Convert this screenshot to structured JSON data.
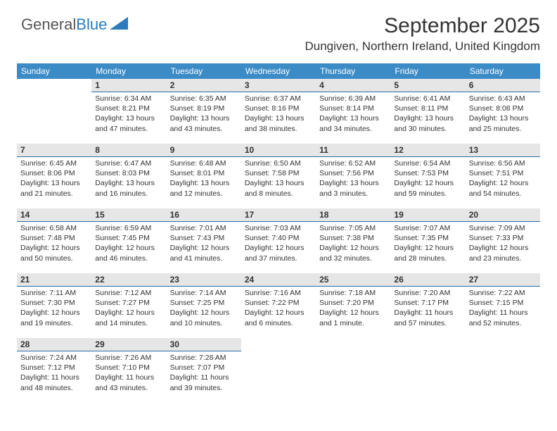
{
  "logo": {
    "text1": "General",
    "text2": "Blue"
  },
  "header": {
    "title": "September 2025",
    "location": "Dungiven, Northern Ireland, United Kingdom"
  },
  "colors": {
    "header_bg": "#3b8bc6",
    "header_fg": "#ffffff",
    "daybar_bg": "#e6e6e6",
    "daybar_border": "#2a6ea8",
    "text": "#333333",
    "logo_blue": "#2b7bbd"
  },
  "weekdays": [
    "Sunday",
    "Monday",
    "Tuesday",
    "Wednesday",
    "Thursday",
    "Friday",
    "Saturday"
  ],
  "weeks": [
    [
      null,
      {
        "n": "1",
        "sr": "6:34 AM",
        "ss": "8:21 PM",
        "dl": "13 hours and 47 minutes."
      },
      {
        "n": "2",
        "sr": "6:35 AM",
        "ss": "8:19 PM",
        "dl": "13 hours and 43 minutes."
      },
      {
        "n": "3",
        "sr": "6:37 AM",
        "ss": "8:16 PM",
        "dl": "13 hours and 38 minutes."
      },
      {
        "n": "4",
        "sr": "6:39 AM",
        "ss": "8:14 PM",
        "dl": "13 hours and 34 minutes."
      },
      {
        "n": "5",
        "sr": "6:41 AM",
        "ss": "8:11 PM",
        "dl": "13 hours and 30 minutes."
      },
      {
        "n": "6",
        "sr": "6:43 AM",
        "ss": "8:08 PM",
        "dl": "13 hours and 25 minutes."
      }
    ],
    [
      {
        "n": "7",
        "sr": "6:45 AM",
        "ss": "8:06 PM",
        "dl": "13 hours and 21 minutes."
      },
      {
        "n": "8",
        "sr": "6:47 AM",
        "ss": "8:03 PM",
        "dl": "13 hours and 16 minutes."
      },
      {
        "n": "9",
        "sr": "6:48 AM",
        "ss": "8:01 PM",
        "dl": "13 hours and 12 minutes."
      },
      {
        "n": "10",
        "sr": "6:50 AM",
        "ss": "7:58 PM",
        "dl": "13 hours and 8 minutes."
      },
      {
        "n": "11",
        "sr": "6:52 AM",
        "ss": "7:56 PM",
        "dl": "13 hours and 3 minutes."
      },
      {
        "n": "12",
        "sr": "6:54 AM",
        "ss": "7:53 PM",
        "dl": "12 hours and 59 minutes."
      },
      {
        "n": "13",
        "sr": "6:56 AM",
        "ss": "7:51 PM",
        "dl": "12 hours and 54 minutes."
      }
    ],
    [
      {
        "n": "14",
        "sr": "6:58 AM",
        "ss": "7:48 PM",
        "dl": "12 hours and 50 minutes."
      },
      {
        "n": "15",
        "sr": "6:59 AM",
        "ss": "7:45 PM",
        "dl": "12 hours and 46 minutes."
      },
      {
        "n": "16",
        "sr": "7:01 AM",
        "ss": "7:43 PM",
        "dl": "12 hours and 41 minutes."
      },
      {
        "n": "17",
        "sr": "7:03 AM",
        "ss": "7:40 PM",
        "dl": "12 hours and 37 minutes."
      },
      {
        "n": "18",
        "sr": "7:05 AM",
        "ss": "7:38 PM",
        "dl": "12 hours and 32 minutes."
      },
      {
        "n": "19",
        "sr": "7:07 AM",
        "ss": "7:35 PM",
        "dl": "12 hours and 28 minutes."
      },
      {
        "n": "20",
        "sr": "7:09 AM",
        "ss": "7:33 PM",
        "dl": "12 hours and 23 minutes."
      }
    ],
    [
      {
        "n": "21",
        "sr": "7:11 AM",
        "ss": "7:30 PM",
        "dl": "12 hours and 19 minutes."
      },
      {
        "n": "22",
        "sr": "7:12 AM",
        "ss": "7:27 PM",
        "dl": "12 hours and 14 minutes."
      },
      {
        "n": "23",
        "sr": "7:14 AM",
        "ss": "7:25 PM",
        "dl": "12 hours and 10 minutes."
      },
      {
        "n": "24",
        "sr": "7:16 AM",
        "ss": "7:22 PM",
        "dl": "12 hours and 6 minutes."
      },
      {
        "n": "25",
        "sr": "7:18 AM",
        "ss": "7:20 PM",
        "dl": "12 hours and 1 minute."
      },
      {
        "n": "26",
        "sr": "7:20 AM",
        "ss": "7:17 PM",
        "dl": "11 hours and 57 minutes."
      },
      {
        "n": "27",
        "sr": "7:22 AM",
        "ss": "7:15 PM",
        "dl": "11 hours and 52 minutes."
      }
    ],
    [
      {
        "n": "28",
        "sr": "7:24 AM",
        "ss": "7:12 PM",
        "dl": "11 hours and 48 minutes."
      },
      {
        "n": "29",
        "sr": "7:26 AM",
        "ss": "7:10 PM",
        "dl": "11 hours and 43 minutes."
      },
      {
        "n": "30",
        "sr": "7:28 AM",
        "ss": "7:07 PM",
        "dl": "11 hours and 39 minutes."
      },
      null,
      null,
      null,
      null
    ]
  ],
  "labels": {
    "sunrise": "Sunrise: ",
    "sunset": "Sunset: ",
    "daylight": "Daylight: "
  }
}
